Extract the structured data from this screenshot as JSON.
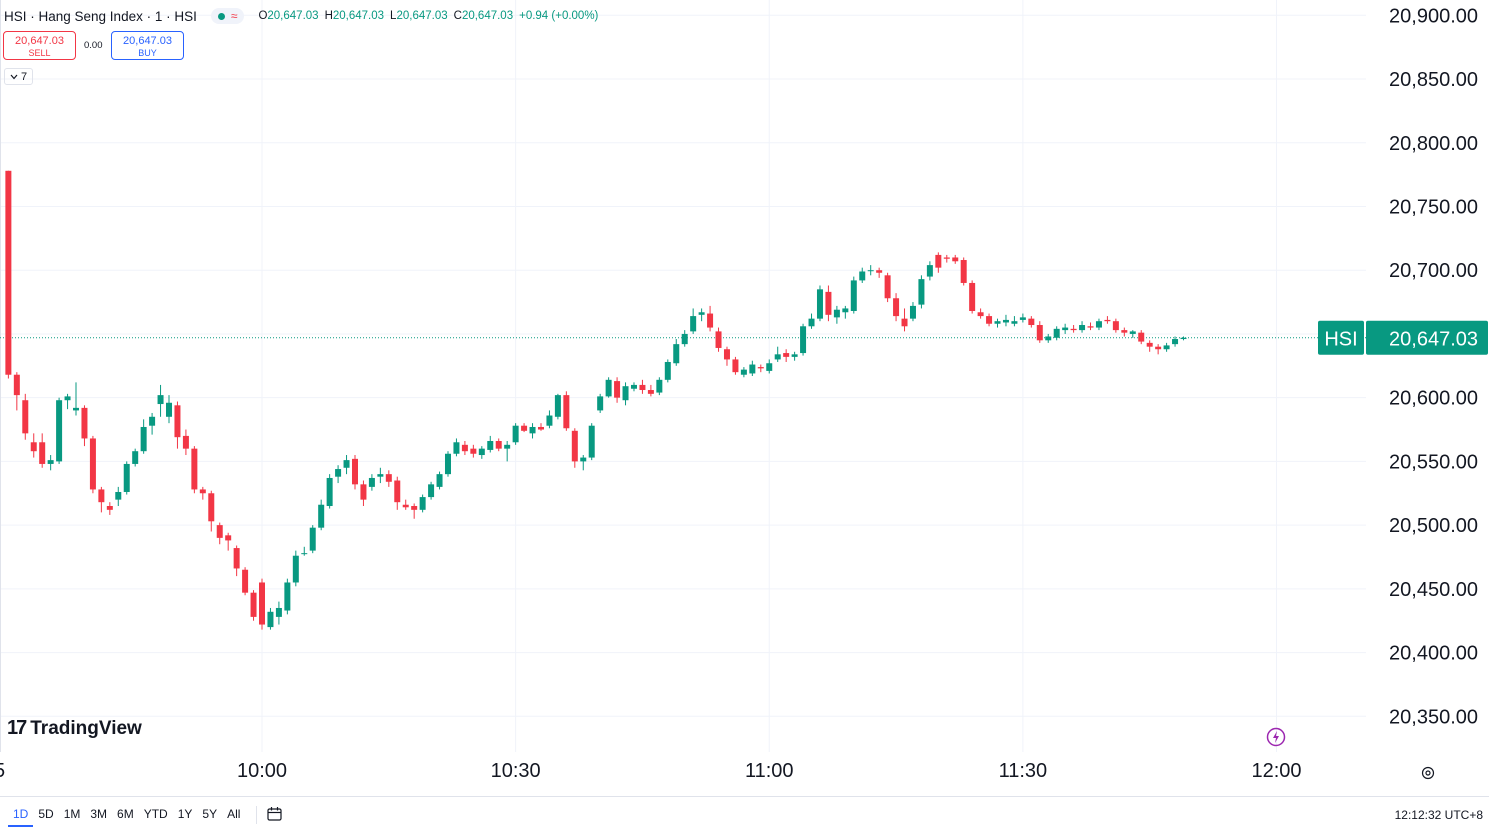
{
  "header": {
    "title": "HSI · Hang Seng Index · 1 · HSI",
    "wave_symbol": "≈",
    "ohlc": [
      {
        "key": "O",
        "value": "20,647.03"
      },
      {
        "key": "H",
        "value": "20,647.03"
      },
      {
        "key": "L",
        "value": "20,647.03"
      },
      {
        "key": "C",
        "value": "20,647.03"
      },
      {
        "key": "",
        "value": "+0.94 (+0.00%)"
      }
    ]
  },
  "trade": {
    "sell_price": "20,647.03",
    "sell_label": "SELL",
    "spread": "0.00",
    "buy_price": "20,647.03",
    "buy_label": "BUY"
  },
  "indicators_toggle": "7",
  "logo": {
    "mark": "17",
    "name": "TradingView"
  },
  "footer": {
    "ranges": [
      "1D",
      "5D",
      "1M",
      "3M",
      "6M",
      "YTD",
      "1Y",
      "5Y",
      "All"
    ],
    "active_range": "1D",
    "clock": "12:12:32 UTC+8"
  },
  "colors": {
    "up": "#089981",
    "down": "#f23645",
    "accent": "#2962ff"
  },
  "chart_data": {
    "type": "candlestick",
    "symbol_label": "HSI",
    "last_price": 20647.03,
    "last_price_label": "20,647.03",
    "y_ticks": [
      20900,
      20850,
      20800,
      20750,
      20700,
      20650,
      20600,
      20550,
      20500,
      20450,
      20400,
      20350
    ],
    "y_tick_labels": [
      "20,900.00",
      "20,850.00",
      "20,800.00",
      "20,750.00",
      "20,700.00",
      "20,650.00",
      "20,600.00",
      "20,550.00",
      "20,500.00",
      "20,450.00",
      "20,400.00",
      "20,350.00"
    ],
    "ylim": [
      20322,
      20912
    ],
    "x_ticks": [
      {
        "label": "10:00",
        "min": 30
      },
      {
        "label": "10:30",
        "min": 60
      },
      {
        "label": "11:00",
        "min": 90
      },
      {
        "label": "11:30",
        "min": 120
      },
      {
        "label": "12:00",
        "min": 150
      }
    ],
    "x_edge_label": "5",
    "start_time": "09:30",
    "xlim_min": [
      0,
      162
    ],
    "grid": true,
    "candles": [
      [
        20778,
        20778,
        20615,
        20618
      ],
      [
        20618,
        20620,
        20590,
        20602
      ],
      [
        20598,
        20603,
        20567,
        20572
      ],
      [
        20565,
        20572,
        20553,
        20558
      ],
      [
        20565,
        20572,
        20545,
        20548
      ],
      [
        20548,
        20555,
        20543,
        20551
      ],
      [
        20550,
        20600,
        20548,
        20598
      ],
      [
        20598,
        20603,
        20591,
        20601
      ],
      [
        20590,
        20612,
        20586,
        20592
      ],
      [
        20592,
        20594,
        20562,
        20568
      ],
      [
        20568,
        20570,
        20525,
        20528
      ],
      [
        20528,
        20530,
        20510,
        20518
      ],
      [
        20515,
        20518,
        20508,
        20512
      ],
      [
        20520,
        20530,
        20515,
        20526
      ],
      [
        20526,
        20550,
        20524,
        20548
      ],
      [
        20548,
        20560,
        20546,
        20558
      ],
      [
        20558,
        20583,
        20556,
        20577
      ],
      [
        20578,
        20588,
        20571,
        20585
      ],
      [
        20595,
        20610,
        20585,
        20602
      ],
      [
        20585,
        20602,
        20580,
        20596
      ],
      [
        20594,
        20597,
        20560,
        20569
      ],
      [
        20570,
        20575,
        20555,
        20560
      ],
      [
        20560,
        20562,
        20525,
        20528
      ],
      [
        20528,
        20530,
        20520,
        20525
      ],
      [
        20525,
        20527,
        20495,
        20503
      ],
      [
        20500,
        20502,
        20485,
        20490
      ],
      [
        20492,
        20494,
        20480,
        20488
      ],
      [
        20482,
        20484,
        20460,
        20466
      ],
      [
        20465,
        20467,
        20445,
        20447
      ],
      [
        20447,
        20449,
        20425,
        20428
      ],
      [
        20455,
        20458,
        20418,
        20422
      ],
      [
        20420,
        20435,
        20418,
        20432
      ],
      [
        20428,
        20440,
        20422,
        20435
      ],
      [
        20433,
        20458,
        20430,
        20455
      ],
      [
        20455,
        20480,
        20452,
        20476
      ],
      [
        20478,
        20483,
        20476,
        20478
      ],
      [
        20480,
        20500,
        20478,
        20498
      ],
      [
        20498,
        20520,
        20496,
        20516
      ],
      [
        20515,
        20540,
        20513,
        20537
      ],
      [
        20538,
        20547,
        20533,
        20544
      ],
      [
        20545,
        20555,
        20540,
        20551
      ],
      [
        20552,
        20555,
        20528,
        20532
      ],
      [
        20532,
        20535,
        20515,
        20520
      ],
      [
        20530,
        20540,
        20527,
        20537
      ],
      [
        20538,
        20545,
        20533,
        20540
      ],
      [
        20540,
        20543,
        20530,
        20534
      ],
      [
        20535,
        20538,
        20512,
        20518
      ],
      [
        20516,
        20520,
        20512,
        20514
      ],
      [
        20515,
        20517,
        20505,
        20512
      ],
      [
        20512,
        20524,
        20510,
        20522
      ],
      [
        20522,
        20534,
        20520,
        20532
      ],
      [
        20530,
        20542,
        20528,
        20540
      ],
      [
        20540,
        20558,
        20538,
        20556
      ],
      [
        20556,
        20568,
        20554,
        20565
      ],
      [
        20563,
        20566,
        20555,
        20558
      ],
      [
        20560,
        20563,
        20553,
        20556
      ],
      [
        20555,
        20562,
        20552,
        20560
      ],
      [
        20559,
        20570,
        20557,
        20566
      ],
      [
        20566,
        20568,
        20558,
        20560
      ],
      [
        20560,
        20566,
        20550,
        20563
      ],
      [
        20565,
        20580,
        20563,
        20578
      ],
      [
        20578,
        20580,
        20573,
        20574
      ],
      [
        20572,
        20580,
        20568,
        20577
      ],
      [
        20577,
        20580,
        20574,
        20575
      ],
      [
        20578,
        20590,
        20576,
        20586
      ],
      [
        20585,
        20603,
        20583,
        20602
      ],
      [
        20602,
        20605,
        20574,
        20576
      ],
      [
        20574,
        20576,
        20545,
        20550
      ],
      [
        20550,
        20555,
        20543,
        20553
      ],
      [
        20553,
        20580,
        20551,
        20578
      ],
      [
        20590,
        20603,
        20588,
        20601
      ],
      [
        20601,
        20616,
        20600,
        20614
      ],
      [
        20613,
        20616,
        20596,
        20600
      ],
      [
        20598,
        20612,
        20594,
        20609
      ],
      [
        20607,
        20612,
        20605,
        20610
      ],
      [
        20610,
        20614,
        20603,
        20606
      ],
      [
        20606,
        20610,
        20601,
        20603
      ],
      [
        20604,
        20616,
        20602,
        20614
      ],
      [
        20614,
        20630,
        20612,
        20628
      ],
      [
        20627,
        20646,
        20625,
        20642
      ],
      [
        20642,
        20653,
        20640,
        20650
      ],
      [
        20652,
        20670,
        20650,
        20664
      ],
      [
        20665,
        20670,
        20660,
        20667
      ],
      [
        20666,
        20672,
        20652,
        20655
      ],
      [
        20652,
        20655,
        20636,
        20639
      ],
      [
        20638,
        20640,
        20625,
        20630
      ],
      [
        20630,
        20632,
        20618,
        20620
      ],
      [
        20618,
        20624,
        20616,
        20622
      ],
      [
        20619,
        20629,
        20617,
        20626
      ],
      [
        20624,
        20626,
        20620,
        20623
      ],
      [
        20621,
        20630,
        20619,
        20627
      ],
      [
        20630,
        20640,
        20628,
        20634
      ],
      [
        20635,
        20638,
        20628,
        20632
      ],
      [
        20632,
        20636,
        20629,
        20634
      ],
      [
        20635,
        20658,
        20633,
        20656
      ],
      [
        20656,
        20666,
        20654,
        20662
      ],
      [
        20662,
        20688,
        20660,
        20685
      ],
      [
        20683,
        20688,
        20660,
        20665
      ],
      [
        20663,
        20672,
        20658,
        20669
      ],
      [
        20667,
        20672,
        20662,
        20670
      ],
      [
        20668,
        20695,
        20666,
        20692
      ],
      [
        20692,
        20702,
        20690,
        20699
      ],
      [
        20700,
        20704,
        20696,
        20700
      ],
      [
        20700,
        20702,
        20694,
        20698
      ],
      [
        20696,
        20698,
        20675,
        20678
      ],
      [
        20678,
        20682,
        20660,
        20664
      ],
      [
        20662,
        20670,
        20652,
        20656
      ],
      [
        20662,
        20675,
        20660,
        20672
      ],
      [
        20673,
        20696,
        20670,
        20693
      ],
      [
        20695,
        20707,
        20692,
        20704
      ],
      [
        20712,
        20714,
        20698,
        20702
      ],
      [
        20710,
        20712,
        20706,
        20709
      ],
      [
        20710,
        20712,
        20705,
        20707
      ],
      [
        20708,
        20710,
        20688,
        20690
      ],
      [
        20690,
        20692,
        20666,
        20668
      ],
      [
        20667,
        20670,
        20662,
        20664
      ],
      [
        20664,
        20666,
        20656,
        20658
      ],
      [
        20658,
        20662,
        20655,
        20660
      ],
      [
        20659,
        20665,
        20656,
        20661
      ],
      [
        20658,
        20664,
        20656,
        20660
      ],
      [
        20661,
        20666,
        20659,
        20663
      ],
      [
        20662,
        20664,
        20655,
        20657
      ],
      [
        20657,
        20660,
        20643,
        20645
      ],
      [
        20645,
        20650,
        20643,
        20648
      ],
      [
        20647,
        20656,
        20645,
        20654
      ],
      [
        20653,
        20658,
        20650,
        20655
      ],
      [
        20654,
        20657,
        20651,
        20653
      ],
      [
        20653,
        20660,
        20651,
        20657
      ],
      [
        20656,
        20659,
        20653,
        20655
      ],
      [
        20655,
        20662,
        20653,
        20660
      ],
      [
        20661,
        20664,
        20658,
        20660
      ],
      [
        20660,
        20662,
        20651,
        20653
      ],
      [
        20653,
        20655,
        20648,
        20651
      ],
      [
        20650,
        20653,
        20647,
        20652
      ],
      [
        20651,
        20653,
        20642,
        20644
      ],
      [
        20643,
        20645,
        20636,
        20640
      ],
      [
        20640,
        20642,
        20634,
        20638
      ],
      [
        20638,
        20643,
        20636,
        20641
      ],
      [
        20642,
        20648,
        20640,
        20646
      ],
      [
        20646,
        20648,
        20645,
        20647
      ]
    ]
  }
}
